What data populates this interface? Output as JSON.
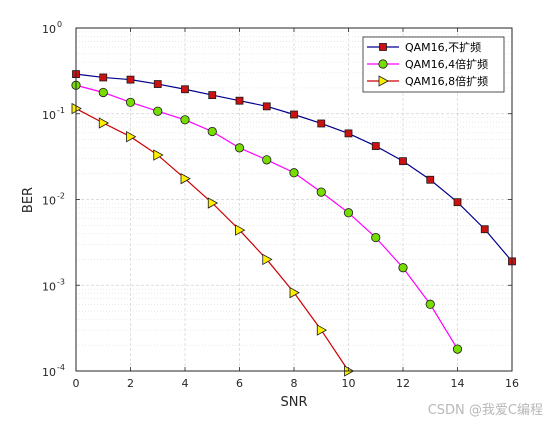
{
  "chart_data": {
    "type": "line",
    "title": "",
    "xlabel": "SNR",
    "ylabel": "BER",
    "xlim": [
      0,
      16
    ],
    "ylim": [
      0.0001,
      1
    ],
    "yscale": "log",
    "grid": true,
    "legend_position": "top-right",
    "x_ticks": [
      0,
      2,
      4,
      6,
      8,
      10,
      12,
      14,
      16
    ],
    "y_ticks": [
      {
        "base": "10",
        "exp": "0",
        "value": 1
      },
      {
        "base": "10",
        "exp": "-1",
        "value": 0.1
      },
      {
        "base": "10",
        "exp": "-2",
        "value": 0.01
      },
      {
        "base": "10",
        "exp": "-3",
        "value": 0.001
      },
      {
        "base": "10",
        "exp": "-4",
        "value": 0.0001
      }
    ],
    "series": [
      {
        "name": "QAM16,不扩频",
        "color": "#00008b",
        "marker": "square",
        "marker_fill": "#cc1111",
        "x": [
          0,
          1,
          2,
          3,
          4,
          5,
          6,
          7,
          8,
          9,
          10,
          11,
          12,
          13,
          14,
          15,
          16
        ],
        "y": [
          0.29,
          0.265,
          0.25,
          0.222,
          0.193,
          0.165,
          0.142,
          0.122,
          0.098,
          0.077,
          0.059,
          0.042,
          0.028,
          0.017,
          0.0093,
          0.0045,
          0.0019
        ]
      },
      {
        "name": "QAM16,4倍扩频",
        "color": "#ff00ff",
        "marker": "circle",
        "marker_fill": "#77dd00",
        "x": [
          0,
          1,
          2,
          3,
          4,
          5,
          6,
          7,
          8,
          9,
          10,
          11,
          12,
          13,
          14
        ],
        "y": [
          0.215,
          0.177,
          0.136,
          0.107,
          0.085,
          0.062,
          0.04,
          0.029,
          0.0205,
          0.0122,
          0.007,
          0.0036,
          0.0016,
          0.0006,
          0.00018
        ]
      },
      {
        "name": "QAM16,8倍扩频",
        "color": "#cc0000",
        "marker": "triangle-right",
        "marker_fill": "#ffee00",
        "x": [
          0,
          1,
          2,
          3,
          4,
          5,
          6,
          7,
          8,
          9,
          10
        ],
        "y": [
          0.115,
          0.078,
          0.054,
          0.033,
          0.0175,
          0.0091,
          0.0044,
          0.002,
          0.00082,
          0.0003,
          0.0001
        ]
      }
    ]
  },
  "watermark": "CSDN @我爱C编程"
}
